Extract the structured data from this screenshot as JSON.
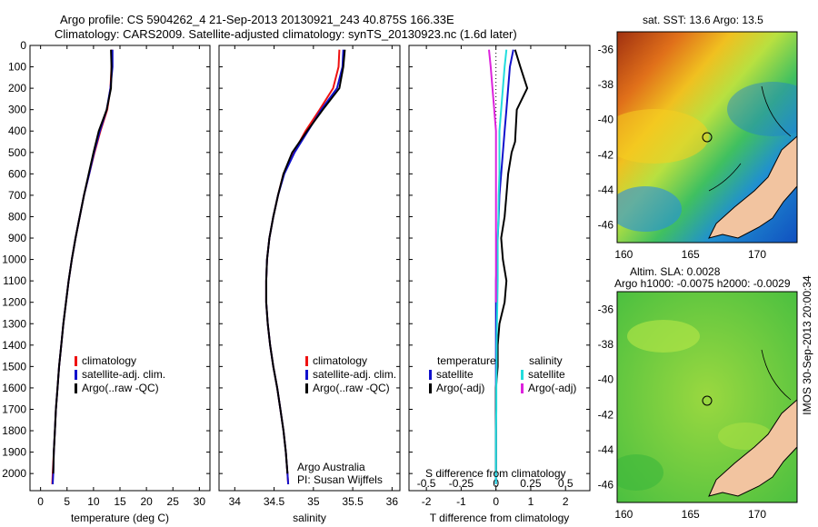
{
  "header": {
    "line1": "Argo profile: CS 5904262_4 21-Sep-2013 20130921_243 40.875S 166.33E",
    "line2": "Climatology: CARS2009. Satellite-adjusted climatology: synTS_20130923.nc (1.6d later)"
  },
  "side_label": "IMOS 30-Sep-2013 20:00:34",
  "chart_data": [
    {
      "type": "line",
      "panel": "temperature",
      "xlabel": "temperature (deg C)",
      "xlim": [
        -2,
        32
      ],
      "xticks": [
        0,
        5,
        10,
        15,
        20,
        25,
        30
      ],
      "ylim": [
        0,
        2080
      ],
      "yticks": [
        0,
        100,
        200,
        300,
        400,
        500,
        600,
        700,
        800,
        900,
        1000,
        1100,
        1200,
        1300,
        1400,
        1500,
        1600,
        1700,
        1800,
        1900,
        2000
      ],
      "legend": [
        "climatology",
        "satellite-adj. clim.",
        "Argo(..raw -QC)"
      ],
      "series": [
        {
          "name": "climatology",
          "color": "#ee1111",
          "x": [
            13.5,
            13.4,
            13.2,
            12.6,
            11.3,
            10.2,
            9.2,
            8.2,
            7.4,
            6.6,
            5.9,
            5.3,
            4.8,
            4.3,
            3.9,
            3.5,
            3.2,
            2.9,
            2.7,
            2.5,
            2.3,
            2.2
          ],
          "y": [
            20,
            100,
            200,
            300,
            400,
            500,
            600,
            700,
            800,
            900,
            1000,
            1100,
            1200,
            1300,
            1400,
            1500,
            1600,
            1700,
            1800,
            1900,
            2000,
            2050
          ]
        },
        {
          "name": "satellite-adj. clim.",
          "color": "#1111cc",
          "x": [
            13.6,
            13.6,
            13.2,
            12.5,
            11.2,
            10.1,
            9.2,
            8.2,
            7.4,
            6.6,
            5.9,
            5.3,
            4.8,
            4.3,
            3.9,
            3.5,
            3.2,
            2.9,
            2.7,
            2.5,
            2.4,
            2.3
          ],
          "y": [
            20,
            100,
            200,
            300,
            400,
            500,
            600,
            700,
            800,
            900,
            1000,
            1100,
            1200,
            1300,
            1400,
            1500,
            1600,
            1700,
            1800,
            1900,
            2000,
            2050
          ]
        },
        {
          "name": "Argo(..raw -QC)",
          "color": "#000000",
          "x": [
            13.3,
            13.4,
            13.3,
            12.5,
            11.0,
            10.0,
            9.1,
            8.2,
            7.4,
            6.6,
            5.9,
            5.3,
            4.8,
            4.3,
            3.9,
            3.5,
            3.2,
            2.9,
            2.7,
            2.5,
            2.4
          ],
          "y": [
            20,
            100,
            200,
            300,
            400,
            500,
            600,
            700,
            800,
            900,
            1000,
            1100,
            1200,
            1300,
            1400,
            1500,
            1600,
            1700,
            1800,
            1900,
            2000
          ]
        }
      ]
    },
    {
      "type": "line",
      "panel": "salinity",
      "xlabel": "salinity",
      "xlim": [
        33.8,
        36.1
      ],
      "xticks": [
        34,
        34.5,
        35,
        35.5,
        36
      ],
      "ylim": [
        0,
        2080
      ],
      "legend": [
        "climatology",
        "satellite-adj. clim.",
        "Argo(..raw -QC)"
      ],
      "annotation": [
        "Argo Australia",
        "PI: Susan Wijffels"
      ],
      "series": [
        {
          "name": "climatology",
          "color": "#ee1111",
          "x": [
            35.33,
            35.32,
            35.25,
            35.08,
            34.9,
            34.75,
            34.62,
            34.55,
            34.49,
            34.44,
            34.41,
            34.4,
            34.4,
            34.42,
            34.45,
            34.49,
            34.54,
            34.58,
            34.62,
            34.65,
            34.67,
            34.68
          ],
          "y": [
            20,
            100,
            200,
            300,
            400,
            500,
            600,
            700,
            800,
            900,
            1000,
            1100,
            1200,
            1300,
            1400,
            1500,
            1600,
            1700,
            1800,
            1900,
            2000,
            2050
          ]
        },
        {
          "name": "satellite-adj. clim.",
          "color": "#1111cc",
          "x": [
            35.38,
            35.37,
            35.3,
            35.1,
            34.93,
            34.76,
            34.63,
            34.55,
            34.49,
            34.44,
            34.41,
            34.4,
            34.4,
            34.42,
            34.45,
            34.49,
            34.54,
            34.58,
            34.62,
            34.65,
            34.67,
            34.68
          ],
          "y": [
            20,
            100,
            200,
            300,
            400,
            500,
            600,
            700,
            800,
            900,
            1000,
            1100,
            1200,
            1300,
            1400,
            1500,
            1600,
            1700,
            1800,
            1900,
            2000,
            2050
          ]
        },
        {
          "name": "Argo(..raw -QC)",
          "color": "#000000",
          "x": [
            35.4,
            35.38,
            35.33,
            35.12,
            34.92,
            34.73,
            34.62,
            34.55,
            34.49,
            34.44,
            34.41,
            34.4,
            34.4,
            34.42,
            34.45,
            34.49,
            34.54,
            34.58,
            34.62,
            34.65,
            34.67
          ],
          "y": [
            20,
            100,
            200,
            300,
            400,
            500,
            600,
            700,
            800,
            900,
            1000,
            1100,
            1200,
            1300,
            1400,
            1500,
            1600,
            1700,
            1800,
            1900,
            2000
          ]
        }
      ]
    },
    {
      "type": "line",
      "panel": "difference",
      "xlabel_top": "S difference from climatology",
      "xlabel": "T difference from climatology",
      "xlim": [
        -2.5,
        2.7
      ],
      "xticks_T": [
        -2,
        -1,
        0,
        1,
        2
      ],
      "xticklabels_S": [
        "-0.5",
        "-0.25",
        "0",
        "0.25",
        "0.5"
      ],
      "xticks_S_pos": [
        -2,
        -1,
        0,
        1,
        2
      ],
      "ylim": [
        0,
        2080
      ],
      "legend_temperature": [
        "temperature",
        "satellite",
        "Argo(-adj)"
      ],
      "legend_salinity": [
        "salinity",
        "satellite",
        "Argo(-adj)"
      ],
      "series": [
        {
          "name": "T satellite",
          "color": "#1111cc",
          "x": [
            0.5,
            0.4,
            0.35,
            0.3,
            0.25,
            0.2,
            0.15,
            0.1,
            0.08,
            0.05,
            0.03,
            0.0,
            0.0,
            0.0,
            0.0,
            0.0,
            0.0,
            0.0,
            0.0,
            0.0,
            0.0
          ],
          "y": [
            20,
            100,
            200,
            300,
            400,
            500,
            600,
            700,
            800,
            900,
            1000,
            1100,
            1200,
            1300,
            1400,
            1500,
            1600,
            1700,
            1800,
            1900,
            2050
          ]
        },
        {
          "name": "T Argo(-adj)",
          "color": "#000000",
          "x": [
            0.55,
            0.7,
            0.9,
            0.6,
            0.55,
            0.45,
            0.35,
            0.3,
            0.25,
            0.15,
            0.2,
            0.3,
            0.25,
            0.1,
            0.05,
            0.05,
            0.0,
            0.0,
            0.0,
            0.0,
            0.0
          ],
          "y": [
            20,
            100,
            200,
            300,
            450,
            500,
            600,
            700,
            800,
            900,
            1000,
            1100,
            1200,
            1300,
            1400,
            1500,
            1600,
            1700,
            1800,
            1900,
            2000
          ]
        },
        {
          "name": "S satellite",
          "color": "#22dddd",
          "x": [
            0.3,
            0.25,
            0.2,
            0.15,
            0.1,
            0.1,
            0.1,
            0.08,
            0.07,
            0.05,
            0.05,
            0.05,
            0.04,
            0.03,
            0.02,
            0.02,
            0.01,
            0.01,
            0.0,
            0.0,
            0.0
          ],
          "y": [
            20,
            100,
            200,
            300,
            400,
            500,
            600,
            700,
            800,
            900,
            1000,
            1100,
            1200,
            1300,
            1400,
            1500,
            1600,
            1700,
            1800,
            1900,
            2050
          ]
        },
        {
          "name": "S Argo(-adj)",
          "color": "#dd22dd",
          "x": [
            -0.2,
            -0.15,
            -0.1,
            -0.05,
            0.0,
            0.0,
            0.0,
            0.0,
            0.0,
            0.0,
            0.0,
            0.0,
            0.0
          ],
          "y": [
            20,
            100,
            200,
            300,
            400,
            500,
            600,
            700,
            800,
            900,
            1000,
            1100,
            1200
          ]
        }
      ]
    },
    {
      "type": "heatmap",
      "panel": "sst-map",
      "title": "sat. SST: 13.6 Argo: 13.5",
      "xticks": [
        160,
        165,
        170
      ],
      "yticks": [
        -36,
        -38,
        -40,
        -42,
        -44,
        -46
      ],
      "xlim": [
        159.5,
        173
      ],
      "ylim": [
        -47,
        -35
      ],
      "argo_position": {
        "lon": 166.33,
        "lat": -40.875
      }
    },
    {
      "type": "heatmap",
      "panel": "sla-map",
      "title": "Altim. SLA: 0.0028",
      "subtitle": "Argo h1000: -0.0075 h2000: -0.0029",
      "xticks": [
        160,
        165,
        170
      ],
      "yticks": [
        -36,
        -38,
        -40,
        -42,
        -44,
        -46
      ],
      "xlim": [
        159.5,
        173
      ],
      "ylim": [
        -47,
        -35
      ],
      "argo_position": {
        "lon": 166.33,
        "lat": -40.875
      }
    }
  ]
}
